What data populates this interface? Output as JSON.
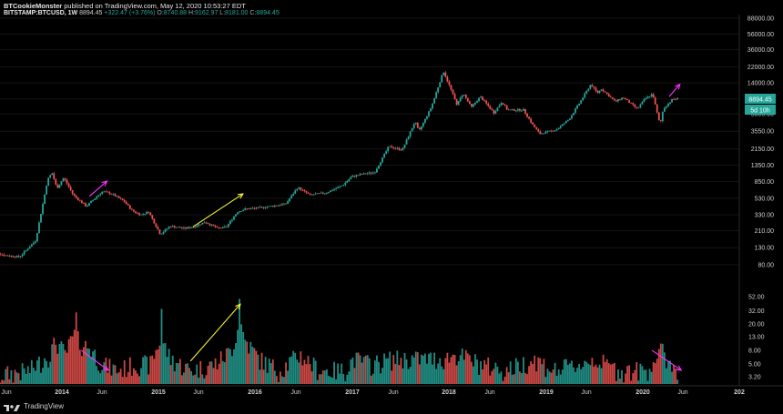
{
  "header": {
    "author": "BTCookieMonster",
    "published": "published on TradingView.com, May 12, 2020 10:53:27 EDT",
    "symbol": "BITSTAMP:BTCUSD, 1W",
    "last": "8894.45",
    "change": "+322.47 (+3.76%)",
    "o_label": "O:",
    "o_value": "8740.88",
    "h_label": "H:",
    "h_value": "9162.97",
    "l_label": "L:",
    "l_value": "8181.00",
    "c_label": "C:",
    "c_value": "8894.45"
  },
  "price_badge": {
    "value": "8894.45",
    "countdown": "5d 10h"
  },
  "brand": {
    "name": "TradingView"
  },
  "colors": {
    "up": "#26a69a",
    "down": "#ef5350",
    "badge": "#26a69a",
    "bg": "#000000",
    "arrow_magenta": "#ff33ff",
    "arrow_yellow": "#f5f53b"
  },
  "chart_data": {
    "type": "candlestick",
    "scale": "log",
    "interval": "1W",
    "ylim": [
      60,
      90000
    ],
    "price_ticks": [
      "88000.00",
      "56000.00",
      "36000.00",
      "22000.00",
      "14000.00",
      "8894.45",
      "5800.00",
      "3550.00",
      "2150.00",
      "1350.00",
      "850.00",
      "530.00",
      "330.00",
      "210.00",
      "130.00",
      "80.00"
    ],
    "volume_ticks": [
      "52.00",
      "32.00",
      "20.00",
      "13.00",
      "8.00",
      "5.00",
      "3.20"
    ],
    "x_ticks": [
      "Jun",
      "2014",
      "Jun",
      "2015",
      "Jun",
      "2016",
      "Jun",
      "2017",
      "Jun",
      "2018",
      "Jun",
      "2019",
      "Jun",
      "2020",
      "Jun",
      "202"
    ],
    "price_path": [
      [
        "2013-04-01",
        130
      ],
      [
        "2013-06-01",
        105
      ],
      [
        "2013-08-01",
        100
      ],
      [
        "2013-10-01",
        160
      ],
      [
        "2013-11-15",
        900
      ],
      [
        "2013-12-01",
        1100
      ],
      [
        "2013-12-20",
        700
      ],
      [
        "2014-01-15",
        950
      ],
      [
        "2014-02-20",
        580
      ],
      [
        "2014-04-10",
        420
      ],
      [
        "2014-05-20",
        560
      ],
      [
        "2014-06-10",
        640
      ],
      [
        "2014-07-15",
        600
      ],
      [
        "2014-09-01",
        480
      ],
      [
        "2014-10-01",
        370
      ],
      [
        "2014-11-01",
        330
      ],
      [
        "2014-12-01",
        360
      ],
      [
        "2015-01-14",
        190
      ],
      [
        "2015-02-20",
        240
      ],
      [
        "2015-04-15",
        225
      ],
      [
        "2015-05-20",
        235
      ],
      [
        "2015-07-01",
        270
      ],
      [
        "2015-08-20",
        225
      ],
      [
        "2015-09-20",
        235
      ],
      [
        "2015-11-01",
        360
      ],
      [
        "2015-12-01",
        390
      ],
      [
        "2016-01-15",
        400
      ],
      [
        "2016-03-01",
        420
      ],
      [
        "2016-05-01",
        450
      ],
      [
        "2016-06-15",
        720
      ],
      [
        "2016-08-01",
        580
      ],
      [
        "2016-10-01",
        620
      ],
      [
        "2016-12-01",
        760
      ],
      [
        "2017-01-05",
        980
      ],
      [
        "2017-02-15",
        1050
      ],
      [
        "2017-04-01",
        1100
      ],
      [
        "2017-05-25",
        2300
      ],
      [
        "2017-07-15",
        2100
      ],
      [
        "2017-09-01",
        4700
      ],
      [
        "2017-09-15",
        3500
      ],
      [
        "2017-11-01",
        7000
      ],
      [
        "2017-12-17",
        19500
      ],
      [
        "2018-01-15",
        11500
      ],
      [
        "2018-02-06",
        7500
      ],
      [
        "2018-03-01",
        10500
      ],
      [
        "2018-04-01",
        7000
      ],
      [
        "2018-05-05",
        9500
      ],
      [
        "2018-06-25",
        6000
      ],
      [
        "2018-07-25",
        8200
      ],
      [
        "2018-08-15",
        6500
      ],
      [
        "2018-10-15",
        6500
      ],
      [
        "2018-11-20",
        4200
      ],
      [
        "2018-12-15",
        3300
      ],
      [
        "2019-02-15",
        3700
      ],
      [
        "2019-04-05",
        5000
      ],
      [
        "2019-05-15",
        8000
      ],
      [
        "2019-06-26",
        13500
      ],
      [
        "2019-07-20",
        10500
      ],
      [
        "2019-08-05",
        11800
      ],
      [
        "2019-09-26",
        8200
      ],
      [
        "2019-10-26",
        9300
      ],
      [
        "2019-12-18",
        6700
      ],
      [
        "2020-01-15",
        8800
      ],
      [
        "2020-02-14",
        10300
      ],
      [
        "2020-03-13",
        4200
      ],
      [
        "2020-03-25",
        6700
      ],
      [
        "2020-04-29",
        8800
      ],
      [
        "2020-05-12",
        8894
      ]
    ],
    "volume_path": [
      [
        "2013-04-01",
        3
      ],
      [
        "2013-06-01",
        3.5
      ],
      [
        "2013-09-01",
        4
      ],
      [
        "2013-11-15",
        7
      ],
      [
        "2013-12-10",
        11
      ],
      [
        "2014-01-15",
        7
      ],
      [
        "2014-02-15",
        14
      ],
      [
        "2014-03-15",
        10
      ],
      [
        "2014-04-15",
        9
      ],
      [
        "2014-06-01",
        5
      ],
      [
        "2014-08-01",
        4
      ],
      [
        "2014-10-01",
        5
      ],
      [
        "2014-12-01",
        5
      ],
      [
        "2015-01-10",
        12
      ],
      [
        "2015-02-15",
        6
      ],
      [
        "2015-05-01",
        4
      ],
      [
        "2015-08-01",
        5
      ],
      [
        "2015-10-01",
        8
      ],
      [
        "2015-11-05",
        22
      ],
      [
        "2015-11-20",
        12
      ],
      [
        "2016-01-15",
        6
      ],
      [
        "2016-04-01",
        4
      ],
      [
        "2016-06-15",
        7
      ],
      [
        "2016-09-01",
        4
      ],
      [
        "2016-12-01",
        4
      ],
      [
        "2017-01-05",
        6
      ],
      [
        "2017-03-15",
        5
      ],
      [
        "2017-06-01",
        6
      ],
      [
        "2017-09-01",
        6
      ],
      [
        "2017-12-15",
        6
      ],
      [
        "2018-02-01",
        7
      ],
      [
        "2018-05-01",
        5
      ],
      [
        "2018-08-01",
        4
      ],
      [
        "2018-11-20",
        6
      ],
      [
        "2019-02-01",
        4
      ],
      [
        "2019-05-15",
        5
      ],
      [
        "2019-07-01",
        6
      ],
      [
        "2019-10-01",
        4
      ],
      [
        "2020-01-15",
        4
      ],
      [
        "2020-03-13",
        8
      ],
      [
        "2020-04-15",
        5
      ],
      [
        "2020-05-12",
        4
      ]
    ],
    "volume_spikes": [
      [
        "2014-02-24",
        30
      ],
      [
        "2015-01-12",
        34
      ],
      [
        "2015-11-02",
        48
      ]
    ],
    "annotations": [
      {
        "kind": "arrow",
        "color": "magenta",
        "from": [
          "2014-04-15",
          560
        ],
        "to": [
          "2014-06-20",
          860
        ]
      },
      {
        "kind": "arrow",
        "color": "yellow",
        "from": [
          "2015-05-10",
          235
        ],
        "to": [
          "2015-11-15",
          600
        ]
      },
      {
        "kind": "arrow",
        "color": "magenta",
        "from": [
          "2020-04-10",
          9500
        ],
        "to": [
          "2020-05-20",
          13500
        ]
      },
      {
        "kind": "vol-arrow",
        "color": "magenta",
        "from": [
          "2014-03-15",
          8
        ],
        "to": [
          "2014-06-25",
          4
        ]
      },
      {
        "kind": "vol-arrow",
        "color": "yellow",
        "from": [
          "2015-05-01",
          5.5
        ],
        "to": [
          "2015-11-05",
          40
        ]
      },
      {
        "kind": "vol-arrow",
        "color": "magenta",
        "from": [
          "2020-02-05",
          8
        ],
        "to": [
          "2020-05-25",
          4
        ]
      }
    ]
  }
}
